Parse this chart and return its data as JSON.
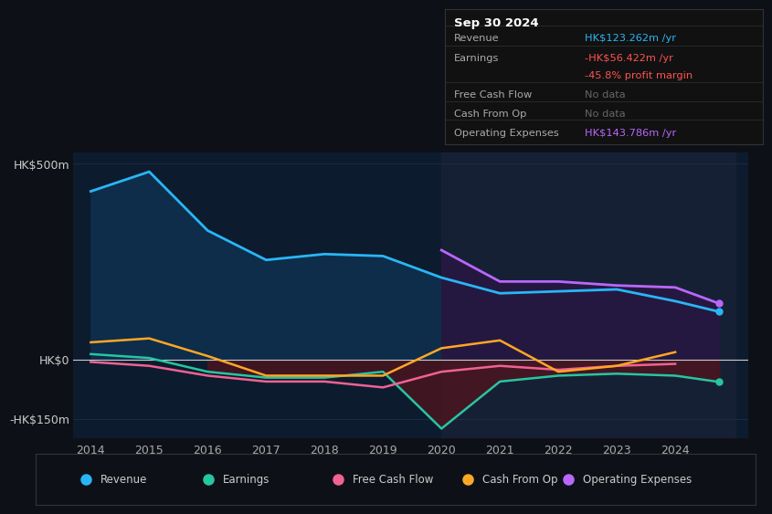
{
  "bg_color": "#0d1117",
  "plot_bg_color": "#0d1b2e",
  "highlight_bg": "#162035",
  "years": [
    2014,
    2015,
    2016,
    2017,
    2018,
    2019,
    2020,
    2021,
    2022,
    2023,
    2024,
    2024.75
  ],
  "revenue": [
    430,
    480,
    330,
    255,
    270,
    265,
    210,
    170,
    175,
    180,
    150,
    123
  ],
  "earnings": [
    15,
    5,
    -30,
    -45,
    -45,
    -30,
    -175,
    -55,
    -40,
    -35,
    -40,
    -56
  ],
  "free_cash_flow": [
    -5,
    -15,
    -40,
    -55,
    -55,
    -70,
    -30,
    -15,
    -25,
    -15,
    -10,
    null
  ],
  "cash_from_op": [
    45,
    55,
    10,
    -40,
    -40,
    -40,
    30,
    50,
    -30,
    -15,
    20,
    null
  ],
  "operating_expenses": [
    null,
    null,
    null,
    null,
    null,
    null,
    280,
    200,
    200,
    190,
    185,
    144
  ],
  "ylim": [
    -200,
    530
  ],
  "ylabel_texts": [
    "-HK$150m",
    "HK$0",
    "HK$500m"
  ],
  "ytick_vals": [
    -150,
    0,
    500
  ],
  "xticks": [
    2014,
    2015,
    2016,
    2017,
    2018,
    2019,
    2020,
    2021,
    2022,
    2023,
    2024
  ],
  "highlight_start": 2020,
  "revenue_color": "#29b6f6",
  "revenue_fill": "#0d2d4a",
  "earnings_color": "#26c6a0",
  "free_cash_flow_color": "#f06292",
  "cash_from_op_color": "#ffa726",
  "operating_expenses_color": "#b967ff",
  "operating_expenses_fill": "#251840",
  "earnings_fill": "#4a1520",
  "zero_line_color": "#cccccc",
  "grid_color": "#1e3050",
  "infobox": {
    "title": "Sep 30 2024",
    "rows": [
      {
        "label": "Revenue",
        "value": "HK$123.262m /yr",
        "value_color": "#29b6f6",
        "label_color": "#aaaaaa",
        "divider_after": true
      },
      {
        "label": "Earnings",
        "value": "-HK$56.422m /yr",
        "value_color": "#ff5252",
        "label_color": "#aaaaaa",
        "divider_after": false
      },
      {
        "label": "",
        "value": "-45.8% profit margin",
        "value_color": "#ff5252",
        "label_color": "#aaaaaa",
        "divider_after": true
      },
      {
        "label": "Free Cash Flow",
        "value": "No data",
        "value_color": "#666666",
        "label_color": "#aaaaaa",
        "divider_after": true
      },
      {
        "label": "Cash From Op",
        "value": "No data",
        "value_color": "#666666",
        "label_color": "#aaaaaa",
        "divider_after": true
      },
      {
        "label": "Operating Expenses",
        "value": "HK$143.786m /yr",
        "value_color": "#b967ff",
        "label_color": "#aaaaaa",
        "divider_after": false
      }
    ]
  },
  "legend": [
    {
      "label": "Revenue",
      "color": "#29b6f6"
    },
    {
      "label": "Earnings",
      "color": "#26c6a0"
    },
    {
      "label": "Free Cash Flow",
      "color": "#f06292"
    },
    {
      "label": "Cash From Op",
      "color": "#ffa726"
    },
    {
      "label": "Operating Expenses",
      "color": "#b967ff"
    }
  ]
}
